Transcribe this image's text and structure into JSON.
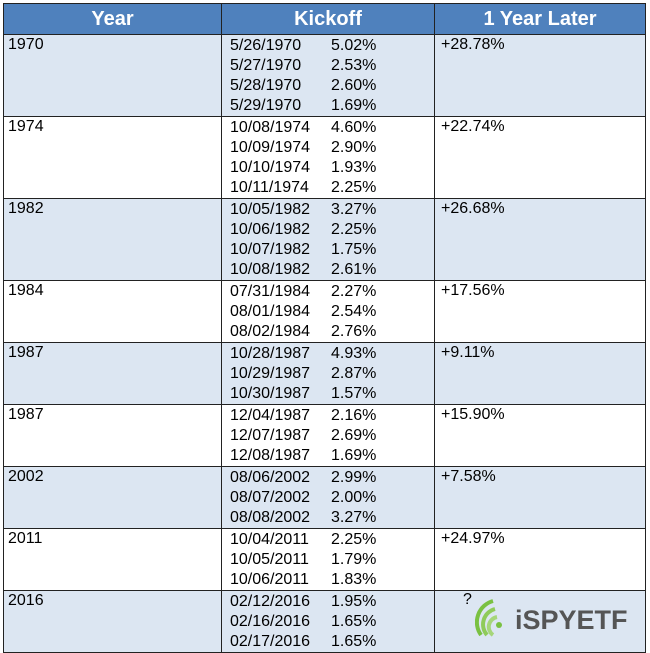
{
  "headers": {
    "year": "Year",
    "kickoff": "Kickoff",
    "later": "1 Year Later"
  },
  "rows": [
    {
      "year": "1970",
      "later": "+28.78%",
      "dates": [
        "5/26/1970",
        "5/27/1970",
        "5/28/1970",
        "5/29/1970"
      ],
      "pcts": [
        "5.02%",
        "2.53%",
        "2.60%",
        "1.69%"
      ]
    },
    {
      "year": "1974",
      "later": "+22.74%",
      "dates": [
        "10/08/1974",
        "10/09/1974",
        "10/10/1974",
        "10/11/1974"
      ],
      "pcts": [
        "4.60%",
        "2.90%",
        "1.93%",
        "2.25%"
      ]
    },
    {
      "year": "1982",
      "later": "+26.68%",
      "dates": [
        "10/05/1982",
        "10/06/1982",
        "10/07/1982",
        "10/08/1982"
      ],
      "pcts": [
        "3.27%",
        "2.25%",
        "1.75%",
        "2.61%"
      ]
    },
    {
      "year": "1984",
      "later": "+17.56%",
      "dates": [
        "07/31/1984",
        "08/01/1984",
        "08/02/1984"
      ],
      "pcts": [
        "2.27%",
        "2.54%",
        "2.76%"
      ]
    },
    {
      "year": "1987",
      "later": "+9.11%",
      "dates": [
        "10/28/1987",
        "10/29/1987",
        "10/30/1987"
      ],
      "pcts": [
        "4.93%",
        "2.87%",
        "1.57%"
      ]
    },
    {
      "year": "1987",
      "later": "+15.90%",
      "dates": [
        "12/04/1987",
        "12/07/1987",
        "12/08/1987"
      ],
      "pcts": [
        "2.16%",
        "2.69%",
        "1.69%"
      ]
    },
    {
      "year": "2002",
      "later": "+7.58%",
      "dates": [
        "08/06/2002",
        "08/07/2002",
        "08/08/2002"
      ],
      "pcts": [
        "2.99%",
        "2.00%",
        "3.27%"
      ]
    },
    {
      "year": "2011",
      "later": "+24.97%",
      "dates": [
        "10/04/2011",
        "10/05/2011",
        "10/06/2011"
      ],
      "pcts": [
        "2.25%",
        "1.79%",
        "1.83%"
      ]
    },
    {
      "year": "2016",
      "later": "?",
      "dates": [
        "02/12/2016",
        "02/16/2016",
        "02/17/2016"
      ],
      "pcts": [
        "1.95%",
        "1.65%",
        "1.65%"
      ]
    }
  ],
  "logo": {
    "text": "iSPYETF"
  },
  "colors": {
    "header": "#4f81bd",
    "row_alt": "#dce6f2"
  }
}
